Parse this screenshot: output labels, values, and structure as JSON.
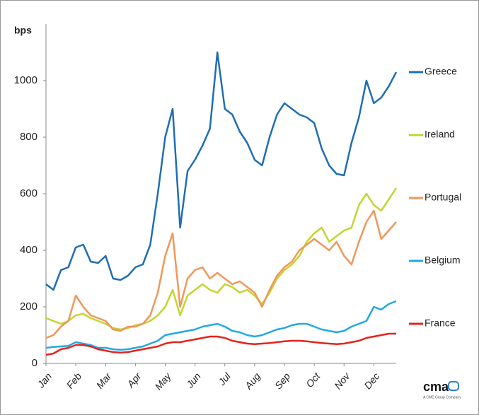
{
  "chart_data": {
    "type": "line",
    "y_label": "bps",
    "categories": [
      "Jan",
      null,
      null,
      null,
      "Feb",
      null,
      null,
      null,
      "Mar",
      null,
      null,
      null,
      "Apr",
      null,
      null,
      null,
      "May",
      null,
      null,
      null,
      "Jun",
      null,
      null,
      null,
      "Jul",
      null,
      null,
      null,
      "Aug",
      null,
      null,
      null,
      "Sep",
      null,
      null,
      null,
      "Oct",
      null,
      null,
      null,
      "Nov",
      null,
      null,
      null,
      "Dec",
      null,
      null,
      null
    ],
    "series": [
      {
        "name": "Greece",
        "color": "#1f6eb4",
        "values": [
          280,
          260,
          330,
          340,
          410,
          420,
          360,
          355,
          380,
          300,
          295,
          310,
          340,
          350,
          420,
          600,
          800,
          900,
          480,
          680,
          720,
          770,
          830,
          1100,
          900,
          880,
          820,
          780,
          720,
          700,
          800,
          880,
          920,
          900,
          880,
          870,
          850,
          760,
          700,
          670,
          665,
          780,
          870,
          1000,
          920,
          940,
          980,
          1030
        ]
      },
      {
        "name": "Ireland",
        "color": "#c3d52e",
        "values": [
          160,
          150,
          140,
          150,
          170,
          175,
          160,
          150,
          140,
          125,
          120,
          125,
          135,
          140,
          150,
          170,
          200,
          260,
          170,
          240,
          260,
          280,
          260,
          250,
          280,
          270,
          250,
          260,
          240,
          210,
          250,
          300,
          330,
          350,
          380,
          430,
          460,
          480,
          430,
          450,
          470,
          480,
          560,
          600,
          560,
          540,
          580,
          620
        ]
      },
      {
        "name": "Portugal",
        "color": "#f0975a",
        "values": [
          90,
          100,
          130,
          150,
          240,
          200,
          170,
          160,
          150,
          120,
          115,
          130,
          130,
          140,
          170,
          250,
          380,
          460,
          200,
          300,
          330,
          340,
          300,
          320,
          300,
          280,
          290,
          270,
          250,
          200,
          260,
          310,
          340,
          360,
          400,
          420,
          440,
          420,
          400,
          430,
          380,
          350,
          430,
          500,
          540,
          440,
          470,
          500
        ]
      },
      {
        "name": "Belgium",
        "color": "#23a8e6",
        "values": [
          55,
          58,
          60,
          62,
          75,
          70,
          65,
          55,
          55,
          50,
          48,
          50,
          55,
          60,
          70,
          80,
          100,
          105,
          110,
          115,
          120,
          130,
          135,
          140,
          130,
          115,
          110,
          100,
          95,
          100,
          110,
          120,
          125,
          135,
          140,
          140,
          130,
          120,
          115,
          110,
          115,
          130,
          140,
          150,
          200,
          190,
          210,
          220
        ]
      },
      {
        "name": "France",
        "color": "#e8221a",
        "values": [
          30,
          35,
          50,
          55,
          65,
          65,
          60,
          50,
          45,
          40,
          38,
          40,
          45,
          50,
          55,
          60,
          70,
          75,
          75,
          80,
          85,
          90,
          95,
          95,
          90,
          80,
          75,
          70,
          68,
          70,
          72,
          75,
          78,
          80,
          80,
          78,
          75,
          72,
          70,
          68,
          70,
          75,
          80,
          90,
          95,
          100,
          105,
          105
        ]
      }
    ],
    "ylim": [
      0,
      1200
    ],
    "yticks": [
      0,
      200,
      400,
      600,
      800,
      1000
    ],
    "grid": false,
    "legend": "right",
    "logo": "cma",
    "logo_caption": "A CME Group Company"
  }
}
